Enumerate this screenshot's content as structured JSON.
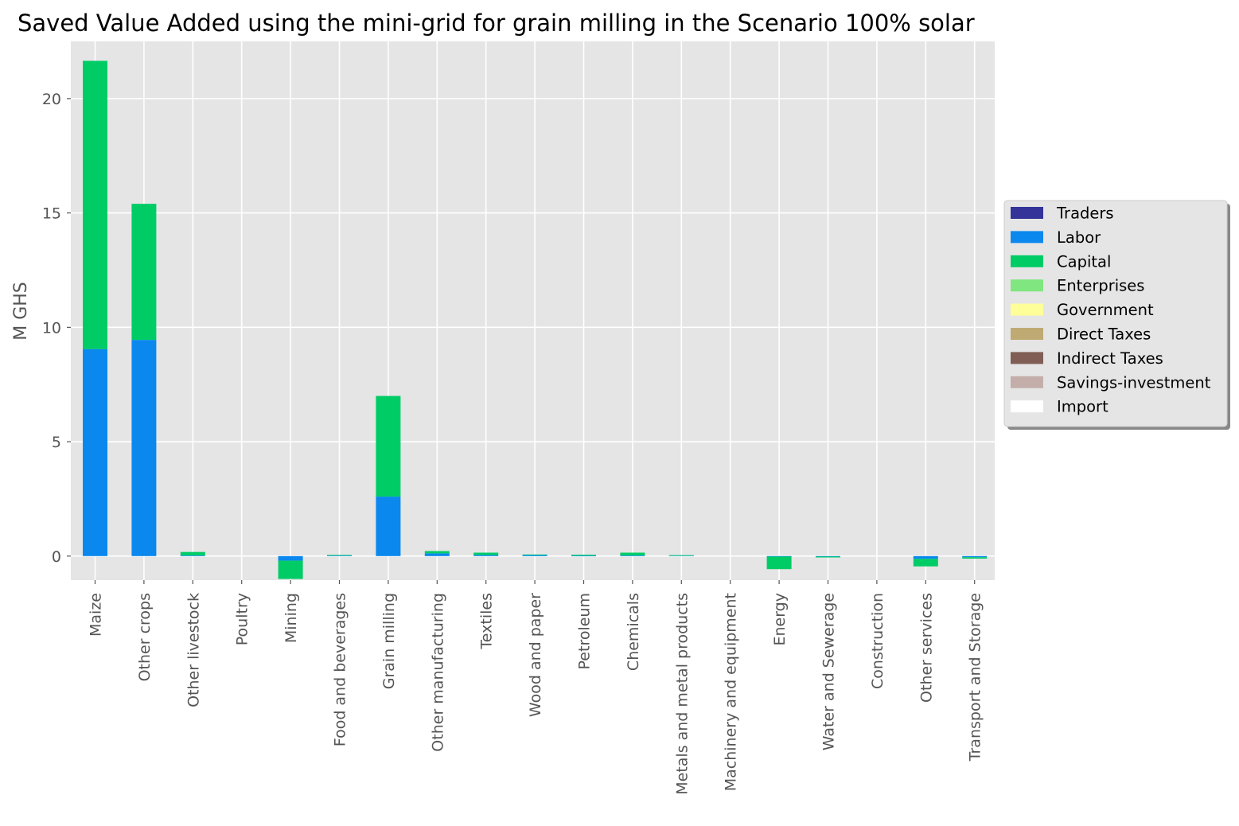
{
  "chart_data": {
    "type": "bar",
    "stacked": true,
    "title": "Saved Value Added using the mini-grid for grain milling in the Scenario 100% solar",
    "xlabel": "",
    "ylabel": "M GHS",
    "ylim": [
      -1.05,
      22.5
    ],
    "yticks": [
      0,
      5,
      10,
      15,
      20
    ],
    "grid": true,
    "legend_position": "center-right",
    "categories": [
      "Maize",
      "Other crops",
      "Other livestock",
      "Poultry",
      "Mining",
      "Food and beverages",
      "Grain milling",
      "Other manufacturing",
      "Textiles",
      "Wood and paper",
      "Petroleum",
      "Chemicals",
      "Metals and metal products",
      "Machinery and equipment",
      "Energy",
      "Water and Sewerage",
      "Construction",
      "Other services",
      "Transport and Storage"
    ],
    "series": [
      {
        "name": "Traders",
        "color": "#333399",
        "values": [
          0,
          0,
          0,
          0,
          0,
          0,
          0,
          0,
          0,
          0,
          0,
          0,
          0,
          0,
          0,
          0,
          0,
          0,
          0
        ]
      },
      {
        "name": "Labor",
        "color": "#0a88ee",
        "values": [
          9.05,
          9.45,
          0.03,
          0,
          -0.2,
          0.04,
          2.6,
          0.12,
          0.05,
          0.05,
          0.02,
          0.03,
          0.03,
          0,
          -0.02,
          -0.02,
          0,
          -0.12,
          -0.05
        ]
      },
      {
        "name": "Capital",
        "color": "#00cc66",
        "values": [
          12.6,
          5.95,
          0.15,
          0,
          -0.8,
          0.01,
          4.4,
          0.1,
          0.1,
          0.02,
          0.04,
          0.12,
          0.01,
          0,
          -0.55,
          -0.04,
          0,
          -0.33,
          -0.06
        ]
      },
      {
        "name": "Enterprises",
        "color": "#80e680",
        "values": [
          0,
          0,
          0,
          0,
          0,
          0,
          0,
          0,
          0,
          0,
          0,
          0,
          0,
          0,
          0,
          0,
          0,
          0,
          0
        ]
      },
      {
        "name": "Government",
        "color": "#ffff99",
        "values": [
          0,
          0,
          0,
          0,
          0,
          0,
          0,
          0,
          0,
          0,
          0,
          0,
          0,
          0,
          0,
          0,
          0,
          0,
          0
        ]
      },
      {
        "name": "Direct Taxes",
        "color": "#bfaa73",
        "values": [
          0,
          0,
          0,
          0,
          0,
          0,
          0,
          0,
          0,
          0,
          0,
          0,
          0,
          0,
          0,
          0,
          0,
          0,
          0
        ]
      },
      {
        "name": "Indirect Taxes",
        "color": "#805e55",
        "values": [
          0,
          0,
          0,
          0,
          0,
          0,
          0,
          0,
          0,
          0,
          0,
          0,
          0,
          0,
          0,
          0,
          0,
          0,
          0
        ]
      },
      {
        "name": "Savings-investment",
        "color": "#c4aeaa",
        "values": [
          0,
          0,
          0,
          0,
          0,
          0,
          0,
          0,
          0,
          0,
          0,
          0,
          0,
          0,
          0,
          0,
          0,
          0,
          0
        ]
      },
      {
        "name": "Import",
        "color": "#ffffff",
        "values": [
          0,
          0,
          0,
          0,
          0,
          0,
          0,
          0,
          0,
          0,
          0,
          0,
          0,
          0,
          0,
          0,
          0,
          0,
          0
        ]
      }
    ]
  }
}
